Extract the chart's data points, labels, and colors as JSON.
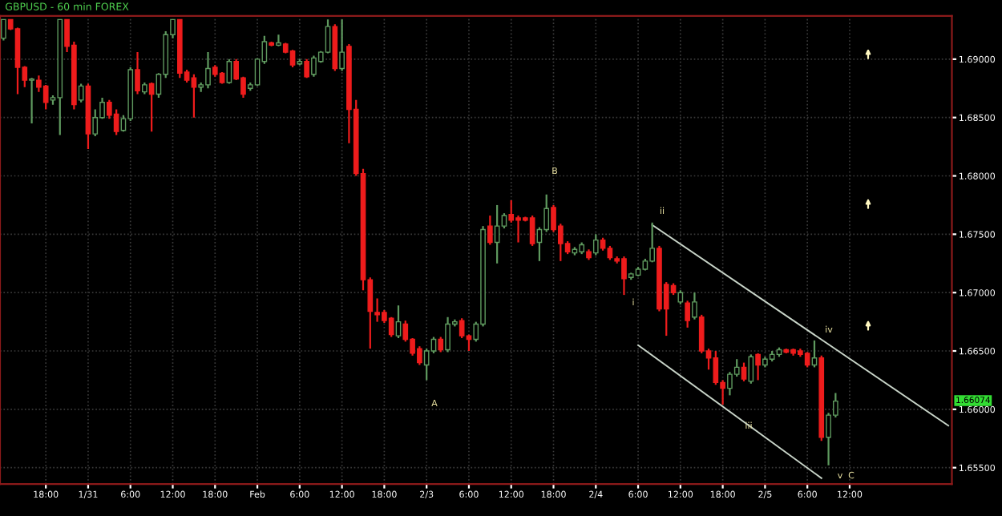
{
  "chart_data": {
    "type": "candlestick",
    "title": "GBPUSD - 60 min FOREX",
    "categories": [
      null,
      null,
      null,
      null,
      null,
      null,
      "18:00",
      null,
      null,
      null,
      null,
      null,
      "1/31",
      null,
      null,
      null,
      null,
      null,
      "6:00",
      null,
      null,
      null,
      null,
      null,
      "12:00",
      null,
      null,
      null,
      null,
      null,
      "18:00",
      null,
      null,
      null,
      null,
      null,
      "Feb",
      null,
      null,
      null,
      null,
      null,
      "6:00",
      null,
      null,
      null,
      null,
      null,
      "12:00",
      null,
      null,
      null,
      null,
      null,
      "18:00",
      null,
      null,
      null,
      null,
      null,
      "2/3",
      null,
      null,
      null,
      null,
      null,
      "6:00",
      null,
      null,
      null,
      null,
      null,
      "12:00",
      null,
      null,
      null,
      null,
      null,
      "18:00",
      null,
      null,
      null,
      null,
      null,
      "2/4",
      null,
      null,
      null,
      null,
      null,
      "6:00",
      null,
      null,
      null,
      null,
      null,
      "12:00",
      null,
      null,
      null,
      null,
      null,
      "18:00",
      null,
      null,
      null,
      null,
      null,
      "2/5",
      null,
      null,
      null,
      null,
      null,
      "6:00",
      null,
      null,
      null,
      null,
      null,
      "12:00",
      null,
      null,
      null,
      null,
      null,
      null,
      null,
      null,
      null,
      null,
      null,
      null,
      null,
      null
    ],
    "ohlc": [
      [
        1.6918,
        1.6934,
        1.6916,
        1.6934
      ],
      [
        1.6934,
        1.6934,
        1.6925,
        1.6926
      ],
      [
        1.6926,
        1.6927,
        1.687,
        1.6893
      ],
      [
        1.6893,
        1.6894,
        1.6876,
        1.6882
      ],
      [
        1.6882,
        1.6884,
        1.6845,
        1.6883
      ],
      [
        1.6882,
        1.6886,
        1.6872,
        1.6876
      ],
      [
        1.6877,
        1.6878,
        1.6857,
        1.6863
      ],
      [
        1.6865,
        1.6869,
        1.6861,
        1.6867
      ],
      [
        1.6867,
        1.6934,
        1.6835,
        1.6934
      ],
      [
        1.6934,
        1.6934,
        1.6906,
        1.6911
      ],
      [
        1.6912,
        1.6915,
        1.6857,
        1.6861
      ],
      [
        1.6865,
        1.6879,
        1.6863,
        1.6877
      ],
      [
        1.6877,
        1.6879,
        1.6823,
        1.6836
      ],
      [
        1.6836,
        1.6857,
        1.6834,
        1.685
      ],
      [
        1.685,
        1.6867,
        1.6849,
        1.6863
      ],
      [
        1.6863,
        1.6865,
        1.6849,
        1.6852
      ],
      [
        1.6853,
        1.6857,
        1.6835,
        1.6838
      ],
      [
        1.6839,
        1.6852,
        1.6838,
        1.6849
      ],
      [
        1.6849,
        1.6893,
        1.6847,
        1.6891
      ],
      [
        1.6891,
        1.6906,
        1.687,
        1.6873
      ],
      [
        1.6872,
        1.688,
        1.687,
        1.6878
      ],
      [
        1.6879,
        1.688,
        1.6838,
        1.687
      ],
      [
        1.687,
        1.6888,
        1.6867,
        1.6887
      ],
      [
        1.6887,
        1.6924,
        1.6884,
        1.6921
      ],
      [
        1.6921,
        1.6934,
        1.6918,
        1.6934
      ],
      [
        1.6934,
        1.6934,
        1.6884,
        1.6888
      ],
      [
        1.6889,
        1.6891,
        1.688,
        1.6882
      ],
      [
        1.6884,
        1.6887,
        1.685,
        1.6876
      ],
      [
        1.6876,
        1.688,
        1.6872,
        1.6878
      ],
      [
        1.6878,
        1.6906,
        1.6875,
        1.6892
      ],
      [
        1.6893,
        1.6895,
        1.6885,
        1.6887
      ],
      [
        1.6888,
        1.6889,
        1.6879,
        1.688
      ],
      [
        1.688,
        1.69,
        1.6879,
        1.6898
      ],
      [
        1.6898,
        1.69,
        1.6882,
        1.6883
      ],
      [
        1.6884,
        1.6885,
        1.6867,
        1.687
      ],
      [
        1.6875,
        1.688,
        1.6873,
        1.6878
      ],
      [
        1.6878,
        1.6901,
        1.6877,
        1.69
      ],
      [
        1.6898,
        1.692,
        1.6896,
        1.6915
      ],
      [
        1.6914,
        1.6915,
        1.6911,
        1.6912
      ],
      [
        1.6912,
        1.6921,
        1.6911,
        1.6914
      ],
      [
        1.6913,
        1.6914,
        1.6905,
        1.6906
      ],
      [
        1.6907,
        1.6908,
        1.6893,
        1.6895
      ],
      [
        1.6896,
        1.69,
        1.6895,
        1.6898
      ],
      [
        1.6898,
        1.69,
        1.6884,
        1.6885
      ],
      [
        1.6887,
        1.6903,
        1.6885,
        1.6901
      ],
      [
        1.6898,
        1.6907,
        1.6897,
        1.6906
      ],
      [
        1.6906,
        1.6934,
        1.6905,
        1.6928
      ],
      [
        1.6928,
        1.693,
        1.689,
        1.6892
      ],
      [
        1.6892,
        1.6934,
        1.689,
        1.6906
      ],
      [
        1.6911,
        1.6913,
        1.6828,
        1.6857
      ],
      [
        1.6857,
        1.6865,
        1.68,
        1.6802
      ],
      [
        1.6802,
        1.6806,
        1.6702,
        1.6711
      ],
      [
        1.6711,
        1.6713,
        1.6652,
        1.6684
      ],
      [
        1.6683,
        1.6695,
        1.6675,
        1.6681
      ],
      [
        1.6683,
        1.6685,
        1.6674,
        1.6676
      ],
      [
        1.6678,
        1.6679,
        1.6662,
        1.6664
      ],
      [
        1.6663,
        1.6689,
        1.6661,
        1.6675
      ],
      [
        1.6673,
        1.6676,
        1.6658,
        1.666
      ],
      [
        1.666,
        1.6661,
        1.6646,
        1.6648
      ],
      [
        1.6652,
        1.6654,
        1.6638,
        1.664
      ],
      [
        1.6638,
        1.6652,
        1.6625,
        1.665
      ],
      [
        1.665,
        1.6662,
        1.6648,
        1.666
      ],
      [
        1.666,
        1.6662,
        1.6649,
        1.6651
      ],
      [
        1.6651,
        1.6679,
        1.6649,
        1.6673
      ],
      [
        1.6673,
        1.6677,
        1.6671,
        1.6675
      ],
      [
        1.6676,
        1.6678,
        1.6661,
        1.6663
      ],
      [
        1.6663,
        1.6664,
        1.665,
        1.666
      ],
      [
        1.666,
        1.6675,
        1.6658,
        1.6673
      ],
      [
        1.6673,
        1.6757,
        1.6671,
        1.6754
      ],
      [
        1.6757,
        1.6766,
        1.6741,
        1.6743
      ],
      [
        1.6743,
        1.6775,
        1.6725,
        1.6757
      ],
      [
        1.6757,
        1.6768,
        1.6755,
        1.6766
      ],
      [
        1.6767,
        1.6779,
        1.676,
        1.6762
      ],
      [
        1.6764,
        1.6766,
        1.6743,
        1.6762
      ],
      [
        1.6764,
        1.6765,
        1.6761,
        1.6762
      ],
      [
        1.6764,
        1.6766,
        1.674,
        1.6742
      ],
      [
        1.6743,
        1.6756,
        1.6727,
        1.6754
      ],
      [
        1.6754,
        1.6784,
        1.6752,
        1.6772
      ],
      [
        1.6773,
        1.6775,
        1.6752,
        1.6754
      ],
      [
        1.6757,
        1.6759,
        1.6727,
        1.6742
      ],
      [
        1.6742,
        1.6744,
        1.6733,
        1.6735
      ],
      [
        1.6734,
        1.6739,
        1.6732,
        1.6737
      ],
      [
        1.6735,
        1.6743,
        1.6733,
        1.6741
      ],
      [
        1.6735,
        1.6737,
        1.6728,
        1.673
      ],
      [
        1.6734,
        1.675,
        1.6732,
        1.6745
      ],
      [
        1.6745,
        1.6747,
        1.6736,
        1.6738
      ],
      [
        1.6738,
        1.674,
        1.6728,
        1.673
      ],
      [
        1.6729,
        1.6731,
        1.6725,
        1.6727
      ],
      [
        1.6729,
        1.6731,
        1.6698,
        1.6712
      ],
      [
        1.6713,
        1.6717,
        1.6711,
        1.6716
      ],
      [
        1.6715,
        1.6722,
        1.6714,
        1.672
      ],
      [
        1.672,
        1.6729,
        1.6719,
        1.6727
      ],
      [
        1.6727,
        1.676,
        1.6726,
        1.6738
      ],
      [
        1.6738,
        1.674,
        1.6684,
        1.6686
      ],
      [
        1.6707,
        1.6709,
        1.6663,
        1.6686
      ],
      [
        1.6706,
        1.6708,
        1.6698,
        1.67
      ],
      [
        1.6692,
        1.6702,
        1.669,
        1.67
      ],
      [
        1.6691,
        1.6693,
        1.667,
        1.6676
      ],
      [
        1.6679,
        1.67,
        1.6677,
        1.6692
      ],
      [
        1.6679,
        1.6681,
        1.6648,
        1.665
      ],
      [
        1.665,
        1.6652,
        1.6634,
        1.6644
      ],
      [
        1.6644,
        1.665,
        1.6621,
        1.6623
      ],
      [
        1.6623,
        1.6625,
        1.6604,
        1.6618
      ],
      [
        1.6618,
        1.6632,
        1.6612,
        1.663
      ],
      [
        1.663,
        1.6643,
        1.6628,
        1.6636
      ],
      [
        1.6636,
        1.664,
        1.6624,
        1.6626
      ],
      [
        1.6624,
        1.6647,
        1.6622,
        1.6645
      ],
      [
        1.6647,
        1.6648,
        1.6625,
        1.6638
      ],
      [
        1.6638,
        1.6645,
        1.6636,
        1.6643
      ],
      [
        1.6643,
        1.665,
        1.6641,
        1.6647
      ],
      [
        1.6647,
        1.6653,
        1.6645,
        1.6651
      ],
      [
        1.6651,
        1.6652,
        1.6648,
        1.6649
      ],
      [
        1.6651,
        1.6652,
        1.6646,
        1.6648
      ],
      [
        1.665,
        1.6652,
        1.6645,
        1.6647
      ],
      [
        1.6648,
        1.6649,
        1.6636,
        1.6638
      ],
      [
        1.6638,
        1.6659,
        1.6636,
        1.6644
      ],
      [
        1.6644,
        1.6646,
        1.6573,
        1.6576
      ],
      [
        1.6576,
        1.6597,
        1.6552,
        1.6595
      ],
      [
        1.6595,
        1.6614,
        1.6593,
        1.6607
      ],
      null,
      null,
      null,
      null,
      null,
      null,
      null,
      null,
      null,
      null,
      null,
      null,
      null,
      null,
      null,
      null
    ],
    "series": [
      {
        "type": "line",
        "color": "#c8d4c8",
        "values": [
          null,
          null,
          null,
          null,
          null,
          null,
          null,
          null,
          null,
          null,
          null,
          null,
          null,
          null,
          null,
          null,
          null,
          null,
          null,
          null,
          null,
          null,
          null,
          null,
          null,
          null,
          null,
          null,
          null,
          null,
          null,
          null,
          null,
          null,
          null,
          null,
          null,
          null,
          null,
          null,
          null,
          null,
          null,
          null,
          null,
          null,
          null,
          null,
          null,
          null,
          null,
          null,
          null,
          null,
          null,
          null,
          null,
          null,
          null,
          null,
          null,
          null,
          null,
          null,
          null,
          null,
          null,
          null,
          null,
          null,
          null,
          null,
          null,
          null,
          null,
          null,
          null,
          null,
          null,
          null,
          null,
          null,
          null,
          null,
          null,
          null,
          null,
          null,
          null,
          null,
          null,
          null,
          1.6758,
          null,
          null,
          null,
          null,
          null,
          null,
          null,
          null,
          null,
          null,
          null,
          null,
          null,
          null,
          null,
          null,
          null,
          null,
          null,
          null,
          null,
          null,
          null,
          null,
          null,
          null,
          null,
          null,
          null,
          null,
          null,
          null,
          null,
          null,
          null,
          null,
          null,
          null,
          null,
          null,
          null,
          1.6586
        ]
      },
      {
        "type": "line",
        "color": "#c8d4c8",
        "values": [
          null,
          null,
          null,
          null,
          null,
          null,
          null,
          null,
          null,
          null,
          null,
          null,
          null,
          null,
          null,
          null,
          null,
          null,
          null,
          null,
          null,
          null,
          null,
          null,
          null,
          null,
          null,
          null,
          null,
          null,
          null,
          null,
          null,
          null,
          null,
          null,
          null,
          null,
          null,
          null,
          null,
          null,
          null,
          null,
          null,
          null,
          null,
          null,
          null,
          null,
          null,
          null,
          null,
          null,
          null,
          null,
          null,
          null,
          null,
          null,
          null,
          null,
          null,
          null,
          null,
          null,
          null,
          null,
          null,
          null,
          null,
          null,
          null,
          null,
          null,
          null,
          null,
          null,
          null,
          null,
          null,
          null,
          null,
          null,
          null,
          null,
          null,
          null,
          null,
          null,
          1.6655,
          null,
          null,
          null,
          null,
          null,
          null,
          null,
          null,
          null,
          null,
          null,
          null,
          null,
          null,
          null,
          null,
          null,
          null,
          null,
          null,
          null,
          null,
          null,
          null,
          null,
          1.6541,
          null,
          null,
          null,
          null,
          null,
          null,
          null,
          null,
          null,
          null,
          null,
          null,
          null,
          null,
          null,
          null,
          null,
          null
        ]
      }
    ],
    "annotations": [
      "A",
      "B",
      "i",
      "ii",
      "iii",
      "iv",
      "v",
      "C",
      "1.66074"
    ],
    "ylim": [
      1.6536,
      1.6937
    ],
    "yticks": [
      {
        "value": 1.655,
        "label": "1.65500"
      },
      {
        "value": 1.66,
        "label": "1.66000"
      },
      {
        "value": 1.665,
        "label": "1.66500"
      },
      {
        "value": 1.67,
        "label": "1.67000"
      },
      {
        "value": 1.675,
        "label": "1.67500"
      },
      {
        "value": 1.68,
        "label": "1.68000"
      },
      {
        "value": 1.685,
        "label": "1.68500"
      },
      {
        "value": 1.69,
        "label": "1.69000"
      }
    ],
    "grid": true
  }
}
